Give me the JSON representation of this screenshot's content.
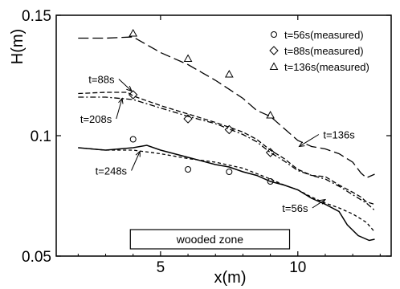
{
  "chart_data": {
    "type": "line",
    "xlabel": "x(m)",
    "ylabel": "H(m)",
    "xlim": [
      1.2,
      13.4
    ],
    "ylim": [
      0.05,
      0.15
    ],
    "xticks": [
      5,
      10
    ],
    "yticks": [
      0.05,
      0.1,
      0.15
    ],
    "ytick_labels": [
      "0.05",
      "0.1",
      "0.15"
    ],
    "xtick_labels": [
      "5",
      "10"
    ],
    "grid": false,
    "legend_position": "top-right",
    "series": [
      {
        "name": "t=56s",
        "style": "solid",
        "x": [
          2.0,
          3.0,
          4.0,
          4.5,
          5.0,
          6.0,
          7.0,
          7.5,
          8.0,
          8.5,
          9.0,
          9.5,
          10.0,
          10.5,
          11.0,
          11.5,
          11.8,
          12.2,
          12.6,
          12.8
        ],
        "y": [
          0.095,
          0.094,
          0.095,
          0.096,
          0.094,
          0.091,
          0.088,
          0.087,
          0.085,
          0.0835,
          0.081,
          0.0795,
          0.0775,
          0.074,
          0.0715,
          0.0685,
          0.063,
          0.0585,
          0.0565,
          0.057
        ]
      },
      {
        "name": "t=248s",
        "style": "short-dash",
        "x": [
          2.0,
          3.0,
          4.0,
          5.0,
          6.0,
          7.0,
          8.0,
          9.0,
          9.5,
          10.0,
          10.5,
          11.0,
          11.5,
          12.0,
          12.5,
          12.8
        ],
        "y": [
          0.095,
          0.094,
          0.094,
          0.0925,
          0.0905,
          0.089,
          0.0865,
          0.082,
          0.0795,
          0.0775,
          0.0745,
          0.072,
          0.07,
          0.0675,
          0.064,
          0.06
        ]
      },
      {
        "name": "t=88s",
        "style": "dash",
        "x": [
          2.0,
          3.0,
          3.8,
          4.0,
          5.0,
          6.0,
          7.0,
          8.0,
          8.5,
          9.0,
          9.5,
          10.0,
          10.5,
          11.0,
          11.5,
          12.0,
          12.3,
          12.5,
          12.8
        ],
        "y": [
          0.1175,
          0.118,
          0.118,
          0.1165,
          0.1125,
          0.109,
          0.1055,
          0.1015,
          0.0985,
          0.094,
          0.0905,
          0.086,
          0.0835,
          0.083,
          0.0795,
          0.0765,
          0.0745,
          0.0725,
          0.0715
        ]
      },
      {
        "name": "t=208s",
        "style": "dash-dot",
        "x": [
          2.0,
          3.0,
          4.0,
          5.0,
          6.0,
          7.0,
          8.0,
          8.5,
          9.0,
          9.5,
          10.0,
          10.5,
          11.0,
          11.5,
          12.0,
          12.5,
          12.8
        ],
        "y": [
          0.116,
          0.116,
          0.115,
          0.1115,
          0.108,
          0.105,
          0.1005,
          0.0975,
          0.093,
          0.0895,
          0.0855,
          0.0835,
          0.082,
          0.079,
          0.0755,
          0.072,
          0.069
        ]
      },
      {
        "name": "t=136s",
        "style": "long-dash",
        "x": [
          2.0,
          3.0,
          4.0,
          5.0,
          6.0,
          7.0,
          8.0,
          8.5,
          9.0,
          9.5,
          10.0,
          10.5,
          11.0,
          11.5,
          12.0,
          12.3,
          12.5,
          12.8
        ],
        "y": [
          0.1405,
          0.1405,
          0.141,
          0.1345,
          0.1295,
          0.123,
          0.1155,
          0.1105,
          0.108,
          0.103,
          0.098,
          0.0955,
          0.0945,
          0.0925,
          0.089,
          0.0845,
          0.0825,
          0.084
        ]
      }
    ],
    "measured": [
      {
        "name": "t=56s(measured)",
        "marker": "circle",
        "x": [
          4.0,
          6.0,
          7.5,
          9.0
        ],
        "y": [
          0.0985,
          0.086,
          0.085,
          0.081
        ]
      },
      {
        "name": "t=88s(measured)",
        "marker": "diamond",
        "x": [
          4.0,
          6.0,
          7.5,
          9.0
        ],
        "y": [
          0.117,
          0.107,
          0.1025,
          0.093
        ]
      },
      {
        "name": "t=136s(measured)",
        "marker": "triangle",
        "x": [
          4.0,
          6.0,
          7.5,
          9.0
        ],
        "y": [
          0.1425,
          0.132,
          0.1255,
          0.1085
        ]
      }
    ],
    "annotations": [
      {
        "text": "t=88s",
        "label_at": [
          2.85,
          0.1235
        ],
        "arrow_to": [
          3.95,
          0.1185
        ]
      },
      {
        "text": "t=208s",
        "label_at": [
          2.65,
          0.107
        ],
        "arrow_to": [
          3.6,
          0.1155
        ]
      },
      {
        "text": "t=248s",
        "label_at": [
          3.2,
          0.0855
        ],
        "arrow_to": [
          4.25,
          0.0935
        ]
      },
      {
        "text": "t=136s",
        "label_at": [
          11.5,
          0.1005
        ],
        "arrow_to": [
          10.05,
          0.0955
        ]
      },
      {
        "text": "t=56s",
        "label_at": [
          9.9,
          0.07
        ],
        "arrow_to": [
          11.0,
          0.0735
        ]
      }
    ],
    "region": {
      "text": "wooded zone",
      "x_start": 3.9,
      "x_end": 9.7
    }
  }
}
